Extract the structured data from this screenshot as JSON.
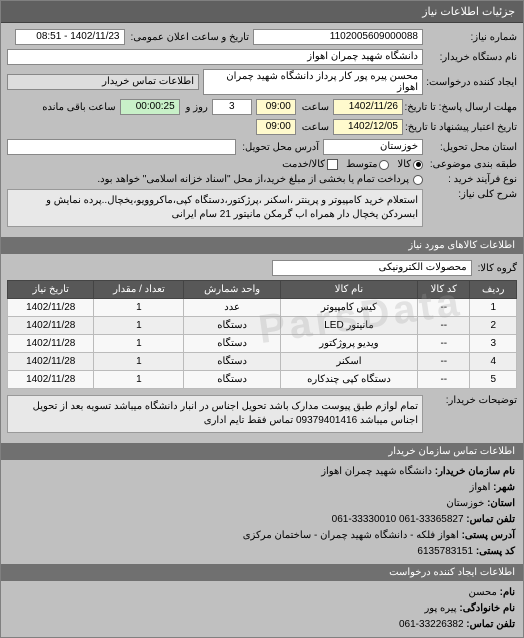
{
  "header": {
    "title": "جزئیات اطلاعات نیاز"
  },
  "top": {
    "refno_lbl": "شماره نیاز:",
    "refno": "1102005609000088",
    "announce_lbl": "تاریخ و ساعت اعلان عمومی:",
    "announce": "1402/11/23 - 08:51",
    "buyer_lbl": "نام دستگاه خریدار:",
    "buyer": "دانشگاه شهید چمران اهواز",
    "requester_lbl": "ایجاد کننده درخواست:",
    "requester": "محسن پیره پور کار پرداز دانشگاه شهید چمران اهواز",
    "contact_lbl": "اطلاعات تماس خریدار",
    "deadline_lbl": "مهلت ارسال پاسخ: تا تاریخ:",
    "deadline_date": "1402/11/26",
    "deadline_hour_lbl": "ساعت",
    "deadline_hour": "09:00",
    "days_lbl": "روز و",
    "days": "3",
    "remain_lbl": "ساعت باقی مانده",
    "remain": "00:00:25",
    "valid_lbl": "تاریخ اعتبار پیشنهاد تا تاریخ:",
    "valid_date": "1402/12/05",
    "valid_hour_lbl": "ساعت",
    "valid_hour": "09:00",
    "province_lbl": "استان محل تحویل:",
    "province": "خوزستان",
    "address_lbl": "آدرس محل تحویل:",
    "budget_lbl": "طبقه بندی موضوعی:",
    "r_goods": "کالا",
    "r_mid": "متوسط",
    "r_checktxt": "کالا/خدمت",
    "process_lbl": "نوع فرآیند خرید :",
    "process_note": "پرداخت تمام یا بخشی از مبلغ خرید،از محل \"اسناد خزانه اسلامی\" خواهد بود.",
    "need_lbl": "شرح کلی نیاز:",
    "need_desc": "استعلام خرید کامپیوتر و پرینتر ،اسکنر ،پرژکتور،دستگاه کپی،ماکروویو،یخچال..پرده نمایش و ابسردکن یخچال دار همراه اب گرمکن مانیتور 21 سام ایرانی"
  },
  "goods_hdr": "اطلاعات کالاهای مورد نیاز",
  "goods_lbl": "گروه کالا:",
  "goods_val": "محصولات الکترونیکی",
  "table": {
    "cols": [
      "ردیف",
      "کد کالا",
      "نام کالا",
      "واحد شمارش",
      "تعداد / مقدار",
      "تاریخ نیاز"
    ],
    "rows": [
      [
        "1",
        "--",
        "کیس کامپیوتر",
        "عدد",
        "1",
        "1402/11/28"
      ],
      [
        "2",
        "--",
        "مانیتور LED",
        "دستگاه",
        "1",
        "1402/11/28"
      ],
      [
        "3",
        "--",
        "ویدیو پروژکتور",
        "دستگاه",
        "1",
        "1402/11/28"
      ],
      [
        "4",
        "--",
        "اسکنر",
        "دستگاه",
        "1",
        "1402/11/28"
      ],
      [
        "5",
        "--",
        "دستگاه کپی چندکاره",
        "دستگاه",
        "1",
        "1402/11/28"
      ]
    ]
  },
  "notes_lbl": "توضیحات خریدار:",
  "notes": "تمام لوازم طبق پیوست مدارک باشد تحویل اجناس در انبار دانشگاه میباشد تسویه بعد از تحویل اجناس میباشد 09379401416 تماس فقط تایم اداری",
  "org_hdr": "اطلاعات تماس سازمان خریدار",
  "org": {
    "name_k": "نام سازمان خریدار:",
    "name_v": "دانشگاه شهید چمران اهواز",
    "city_k": "شهر:",
    "city_v": "اهواز",
    "prov_k": "استان:",
    "prov_v": "خوزستان",
    "tel_k": "تلفن تماس:",
    "tel_v": "33365827-061 33330010-061",
    "addr_k": "آدرس پستی:",
    "addr_v": "اهواز فلکه - دانشگاه شهید چمران - ساختمان مرکزی",
    "post_k": "کد پستی:",
    "post_v": "6135783151"
  },
  "creator_hdr": "اطلاعات ایجاد کننده درخواست",
  "creator": {
    "n_k": "نام:",
    "n_v": "محسن",
    "f_k": "نام خانوادگی:",
    "f_v": "پیره پور",
    "t_k": "تلفن تماس:",
    "t_v": "33226382-061"
  },
  "watermark": "ParsData"
}
